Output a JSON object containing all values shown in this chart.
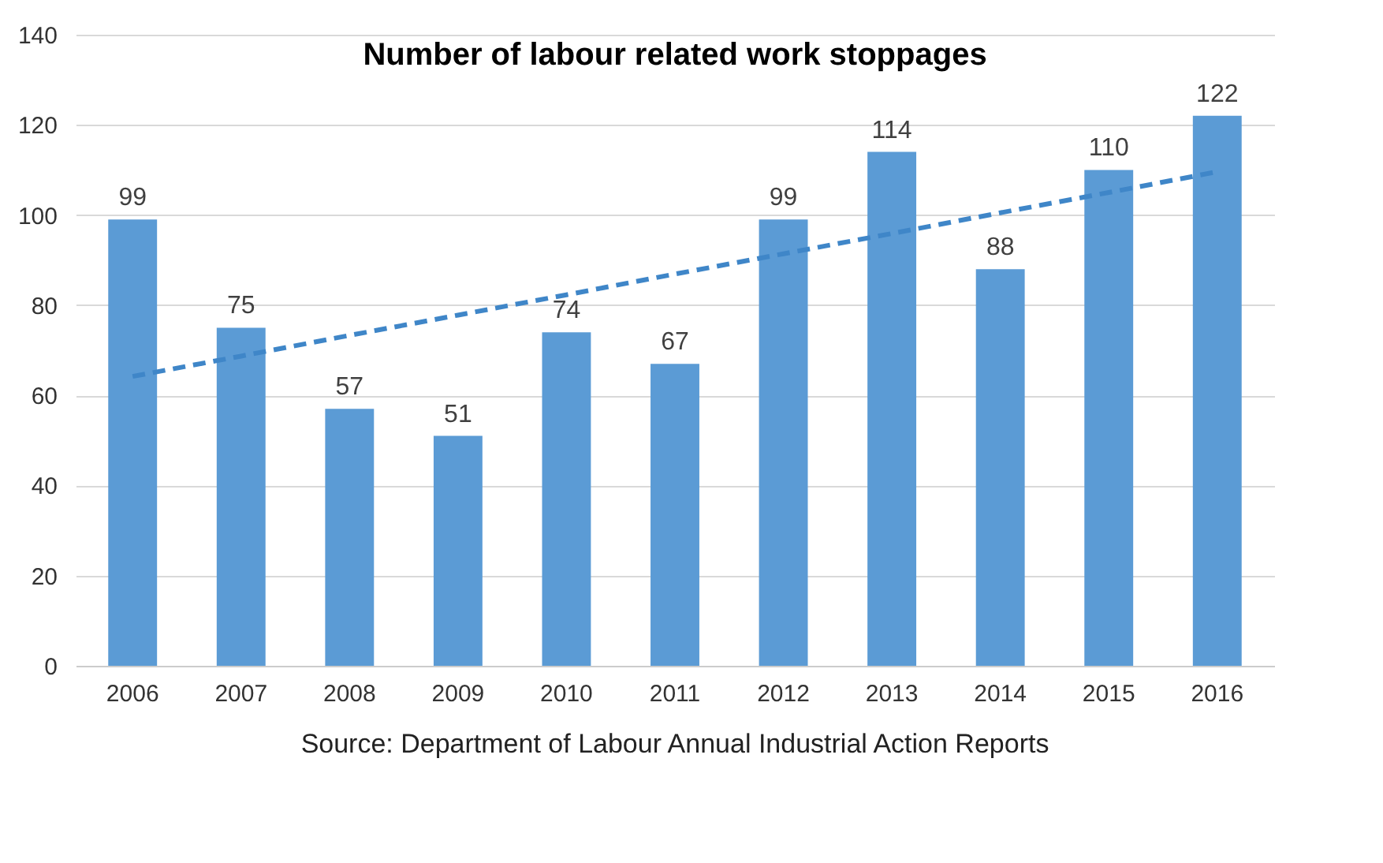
{
  "chart_data": {
    "type": "bar",
    "title": "Number of labour related work stoppages",
    "categories": [
      "2006",
      "2007",
      "2008",
      "2009",
      "2010",
      "2011",
      "2012",
      "2013",
      "2014",
      "2015",
      "2016"
    ],
    "series": [
      {
        "color": "#5b9bd5",
        "values": [
          99,
          75,
          57,
          51,
          74,
          67,
          99,
          114,
          88,
          110,
          122
        ],
        "value_labels": [
          "99",
          "75",
          "57",
          "51",
          "74",
          "67",
          "99",
          "114",
          "88",
          "110",
          "122"
        ]
      },
      {
        "type": "line",
        "color": "#3f86c8",
        "line_style": "dashed",
        "values": [
          64.2,
          68.7,
          73.3,
          77.8,
          82.3,
          86.9,
          91.4,
          95.9,
          100.5,
          105.0,
          109.6
        ]
      }
    ],
    "ylim": [
      0,
      140
    ],
    "yticks": [
      0,
      20,
      40,
      60,
      80,
      100,
      120,
      140
    ],
    "grid": "y",
    "annotations": [
      "Source: Department of Labour Annual Industrial Action Reports"
    ]
  }
}
